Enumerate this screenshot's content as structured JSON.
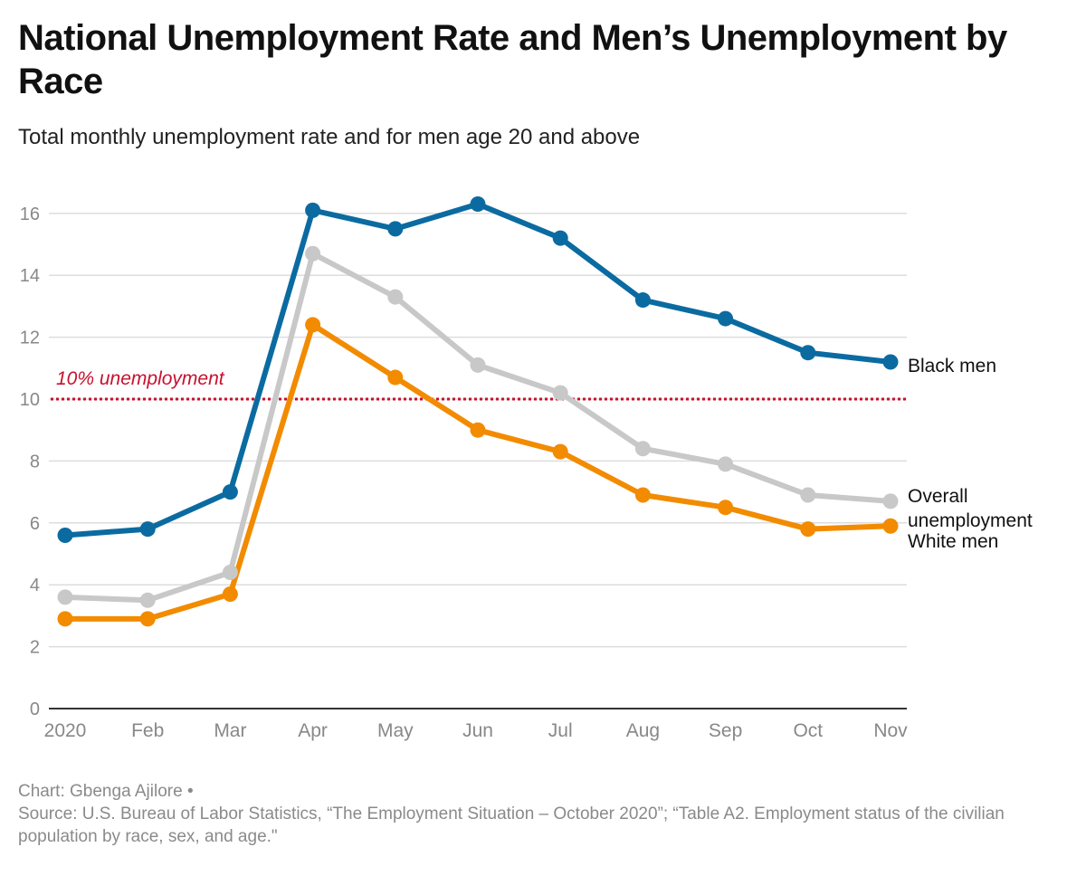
{
  "header": {
    "title": "National Unemployment Rate and Men’s Unemployment by Race",
    "subtitle": "Total monthly unemployment rate and for men age 20 and above"
  },
  "footer": {
    "credit": "Chart: Gbenga Ajilore •",
    "source": "Source: U.S. Bureau of Labor Statistics, “The Employment Situation – October 2020”; “Table A2. Employment status of the civilian population by race, sex, and age.\""
  },
  "colors": {
    "black_men": "#0b6ba1",
    "overall": "#c8c8c8",
    "white_men": "#f28b00",
    "reference": "#c8102e",
    "grid": "#dddddd",
    "axis": "#333333",
    "tick_text": "#888888"
  },
  "chart_data": {
    "type": "line",
    "title": "National Unemployment Rate and Men’s Unemployment by Race",
    "subtitle": "Total monthly unemployment rate and for men age 20 and above",
    "xlabel": "",
    "ylabel": "",
    "categories": [
      "2020",
      "Feb",
      "Mar",
      "Apr",
      "May",
      "Jun",
      "Jul",
      "Aug",
      "Sep",
      "Oct",
      "Nov"
    ],
    "ylim": [
      0,
      16.6
    ],
    "yticks": [
      0,
      2,
      4,
      6,
      8,
      10,
      12,
      14,
      16
    ],
    "grid": true,
    "legend": "direct labels at line ends",
    "series": [
      {
        "name": "Overall unemployment",
        "color": "#c8c8c8",
        "values": [
          3.6,
          3.5,
          4.4,
          14.7,
          13.3,
          11.1,
          10.2,
          8.4,
          7.9,
          6.9,
          6.7
        ]
      },
      {
        "name": "White men",
        "color": "#f28b00",
        "values": [
          2.9,
          2.9,
          3.7,
          12.4,
          10.7,
          9.0,
          8.3,
          6.9,
          6.5,
          5.8,
          5.9
        ]
      },
      {
        "name": "Black men",
        "color": "#0b6ba1",
        "values": [
          5.6,
          5.8,
          7.0,
          16.1,
          15.5,
          16.3,
          15.2,
          13.2,
          12.6,
          11.5,
          11.2
        ]
      }
    ],
    "reference_line": {
      "value": 10,
      "label": "10% unemployment",
      "style": "dotted",
      "color": "#c8102e"
    }
  }
}
